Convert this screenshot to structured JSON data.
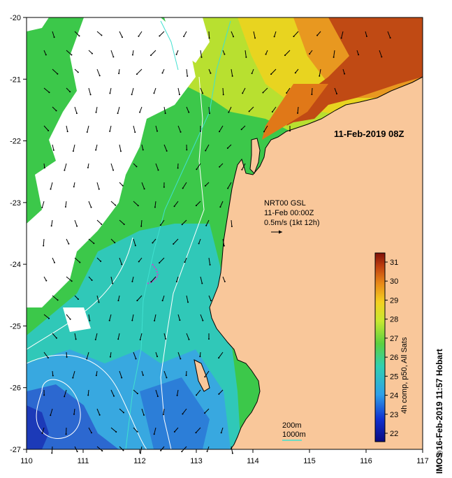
{
  "map": {
    "timestamp": "11-Feb-2019 08Z",
    "current": {
      "line1": "NRT00 GSL",
      "line2": "11-Feb 00:00Z",
      "line3": "0.5m/s (1kt 12h)"
    },
    "contours": {
      "label_200": "200m",
      "label_1000": "1000m"
    },
    "x_ticks": [
      "110",
      "111",
      "112",
      "113",
      "114",
      "115",
      "116",
      "117"
    ],
    "y_ticks": [
      "-20",
      "-21",
      "-22",
      "-23",
      "-24",
      "-25",
      "-26",
      "-27"
    ],
    "colorbar": {
      "label": "4h comp, p50, All Sats",
      "ticks": [
        "31",
        "30",
        "29",
        "28",
        "27",
        "26",
        "25",
        "24",
        "23",
        "22"
      ]
    },
    "credit": "IMOS 16-Feb-2019 11:57 Hobart",
    "copyright_symbol": "©",
    "colors": {
      "land": "#f9c79a",
      "cloud": "#ffffff",
      "warm": "#a33a10",
      "cool": "#1a3fb0",
      "contour_200": "#ffffff",
      "contour_1000": "#40e0d0",
      "drifter": "#d040d0"
    }
  }
}
